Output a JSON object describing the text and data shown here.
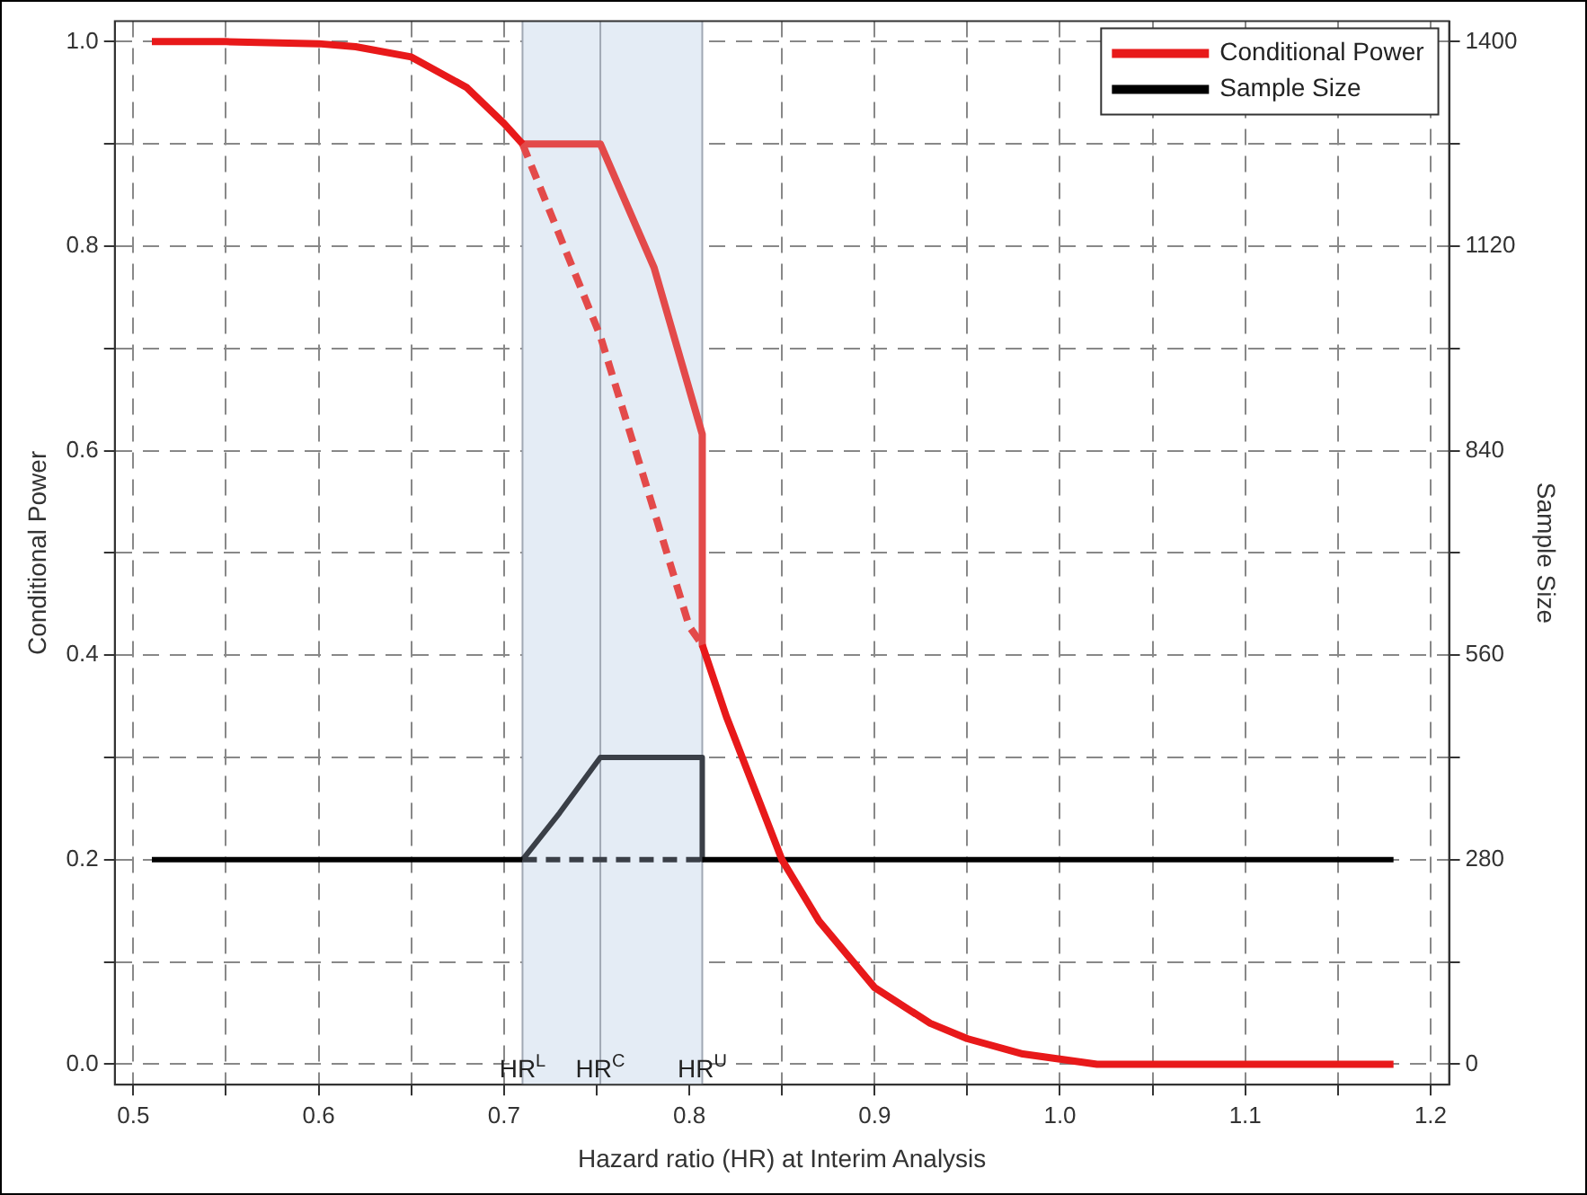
{
  "chart_data": {
    "type": "line",
    "xlabel": "Hazard ratio (HR) at Interim Analysis",
    "ylabel": "Conditional Power",
    "y2label": "Sample Size",
    "xlim": [
      0.49,
      1.21
    ],
    "ylim": [
      -0.02,
      1.02
    ],
    "y2lim": [
      -28,
      1428
    ],
    "xticks": [
      0.5,
      {
        "value": 0.55,
        "label": null
      },
      0.6,
      {
        "value": 0.65,
        "label": null
      },
      0.7,
      {
        "value": 0.75,
        "label": null
      },
      0.8,
      {
        "value": 0.85,
        "label": null
      },
      0.9,
      {
        "value": 0.95,
        "label": null
      },
      {
        "value": 1.0,
        "label": "1.0"
      },
      {
        "value": 1.05,
        "label": null
      },
      1.1,
      {
        "value": 1.15,
        "label": null
      },
      1.2
    ],
    "yticks": [
      {
        "value": 0.0,
        "label": "0.0"
      },
      {
        "value": 0.1,
        "label": null
      },
      0.2,
      {
        "value": 0.3,
        "label": null
      },
      0.4,
      {
        "value": 0.5,
        "label": null
      },
      0.6,
      {
        "value": 0.7,
        "label": null
      },
      0.8,
      {
        "value": 0.9,
        "label": null
      },
      {
        "value": 1.0,
        "label": "1.0"
      }
    ],
    "y2ticks": [
      0,
      {
        "value": 140,
        "label": null
      },
      280,
      {
        "value": 420,
        "label": null
      },
      560,
      {
        "value": 700,
        "label": null
      },
      840,
      {
        "value": 980,
        "label": null
      },
      1120,
      {
        "value": 1260,
        "label": null
      },
      1400
    ],
    "grid": true,
    "legend": "top right",
    "line_style": "solid",
    "marker": "none",
    "bands": [
      {
        "axis": "x",
        "from": 0.71,
        "to": 0.807,
        "color": "#e4ecf5"
      }
    ],
    "ref_lines": [
      {
        "axis": "x",
        "value": 0.71,
        "label": "HR$^{L}$",
        "color": "#a0a8b4"
      },
      {
        "axis": "x",
        "value": 0.752,
        "label": "HR$^{C}$",
        "color": "#a0a8b4"
      },
      {
        "axis": "x",
        "value": 0.807,
        "label": "HR$^{U}$",
        "color": "#a0a8b4"
      }
    ],
    "series": [
      {
        "name": "Conditional Power",
        "color": "#e8191a",
        "x": [
          0.51,
          0.55,
          0.6,
          0.62,
          0.65,
          0.68,
          0.7,
          0.71,
          0.76,
          0.807,
          0.82,
          0.835,
          0.85,
          0.87,
          0.9,
          0.93,
          0.95,
          0.98,
          1.0,
          1.02,
          1.1,
          1.18
        ],
        "values": [
          1.0,
          1.0,
          0.998,
          0.995,
          0.985,
          0.955,
          0.92,
          0.9,
          null,
          0.41,
          0.34,
          0.27,
          0.2,
          0.14,
          0.075,
          0.04,
          0.025,
          0.01,
          0.005,
          0,
          0,
          0
        ]
      },
      {
        "color": "#e34a4a",
        "x": [
          0.71,
          0.752,
          0.781,
          0.807,
          0.807
        ],
        "values": [
          0.9,
          0.9,
          0.779,
          0.616,
          0.41
        ]
      },
      {
        "color": "#e34a4a",
        "line_style": "dashed",
        "x": [
          0.71,
          0.752,
          0.78,
          0.8,
          0.807
        ],
        "values": [
          0.9,
          0.712,
          0.547,
          0.428,
          0.41
        ]
      },
      {
        "name": "Sample Size",
        "color": "#000000",
        "axis": "y2",
        "x": [
          0.51,
          0.71,
          0.76,
          0.807,
          1.18
        ],
        "values": [
          280,
          280,
          null,
          280,
          280
        ]
      },
      {
        "color": "#3a3f47",
        "axis": "y2",
        "x": [
          0.71,
          0.73,
          0.752,
          0.807,
          0.807
        ],
        "values": [
          280,
          344,
          420,
          420,
          280
        ]
      },
      {
        "color": "#3a3f47",
        "axis": "y2",
        "line_style": "dashed",
        "x": [
          0.71,
          0.807
        ],
        "values": [
          280,
          280
        ]
      }
    ]
  }
}
